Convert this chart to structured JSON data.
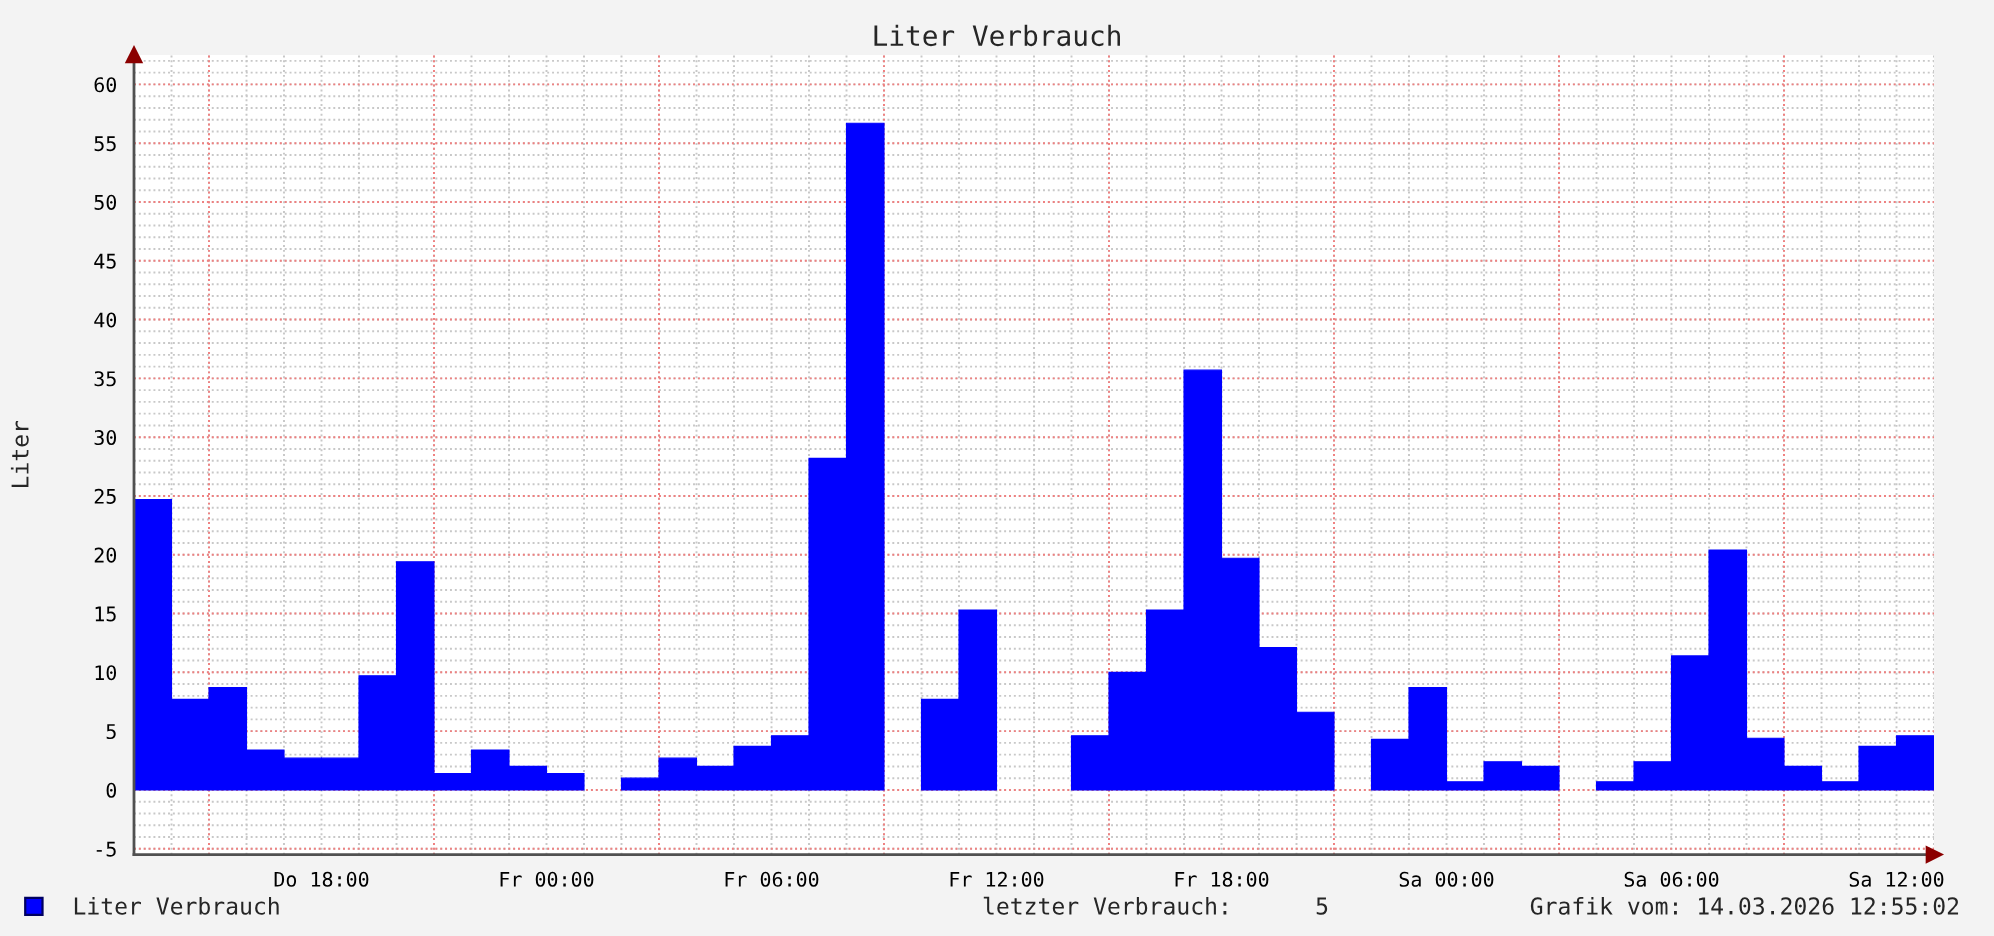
{
  "chart_data": {
    "type": "bar",
    "title": "Liter Verbrauch",
    "ylabel": "Liter",
    "x": [
      "2026-03-12T13:30",
      "2026-03-12T14:30",
      "2026-03-12T15:30",
      "2026-03-12T16:30",
      "2026-03-12T17:30",
      "2026-03-12T18:30",
      "2026-03-12T19:30",
      "2026-03-12T20:30",
      "2026-03-12T21:30",
      "2026-03-12T22:30",
      "2026-03-12T23:30",
      "2026-03-13T00:30",
      "2026-03-13T01:30",
      "2026-03-13T02:30",
      "2026-03-13T03:30",
      "2026-03-13T04:30",
      "2026-03-13T05:30",
      "2026-03-13T06:30",
      "2026-03-13T07:30",
      "2026-03-13T08:30",
      "2026-03-13T09:30",
      "2026-03-13T10:30",
      "2026-03-13T11:30",
      "2026-03-13T12:30",
      "2026-03-13T13:30",
      "2026-03-13T14:30",
      "2026-03-13T15:30",
      "2026-03-13T16:30",
      "2026-03-13T17:30",
      "2026-03-13T18:30",
      "2026-03-13T19:30",
      "2026-03-13T20:30",
      "2026-03-13T21:30",
      "2026-03-13T22:30",
      "2026-03-13T23:30",
      "2026-03-14T00:30",
      "2026-03-14T01:30",
      "2026-03-14T02:30",
      "2026-03-14T03:30",
      "2026-03-14T04:30",
      "2026-03-14T05:30",
      "2026-03-14T06:30",
      "2026-03-14T07:30",
      "2026-03-14T08:30",
      "2026-03-14T09:30",
      "2026-03-14T10:30",
      "2026-03-14T11:30",
      "2026-03-14T12:30"
    ],
    "series": [
      {
        "name": "Liter Verbrauch",
        "color": "#0000ff",
        "values": [
          24.7,
          7.7,
          8.7,
          3.4,
          2.7,
          2.7,
          9.7,
          19.4,
          1.4,
          3.4,
          2.0,
          1.4,
          null,
          1.0,
          2.7,
          2.0,
          3.7,
          4.6,
          28.2,
          56.7,
          null,
          7.7,
          15.3,
          null,
          null,
          4.6,
          10.0,
          15.3,
          35.7,
          19.7,
          12.1,
          6.6,
          null,
          4.3,
          8.7,
          0.7,
          2.4,
          2.0,
          null,
          0.7,
          2.4,
          11.4,
          20.4,
          4.4,
          2.0,
          0.7,
          3.7,
          4.6
        ]
      }
    ],
    "xlim": [
      "2026-03-12T13:00",
      "2026-03-14T13:00"
    ],
    "xticks": [
      {
        "value": "2026-03-12T15:00",
        "label": null
      },
      {
        "value": "2026-03-12T18:00",
        "label": "Do 18:00"
      },
      {
        "value": "2026-03-12T21:00",
        "label": null
      },
      {
        "value": "2026-03-13T00:00",
        "label": "Fr 00:00"
      },
      {
        "value": "2026-03-13T03:00",
        "label": null
      },
      {
        "value": "2026-03-13T06:00",
        "label": "Fr 06:00"
      },
      {
        "value": "2026-03-13T09:00",
        "label": null
      },
      {
        "value": "2026-03-13T12:00",
        "label": "Fr 12:00"
      },
      {
        "value": "2026-03-13T15:00",
        "label": null
      },
      {
        "value": "2026-03-13T18:00",
        "label": "Fr 18:00"
      },
      {
        "value": "2026-03-13T21:00",
        "label": null
      },
      {
        "value": "2026-03-14T00:00",
        "label": "Sa 00:00"
      },
      {
        "value": "2026-03-14T03:00",
        "label": null
      },
      {
        "value": "2026-03-14T06:00",
        "label": "Sa 06:00"
      },
      {
        "value": "2026-03-14T09:00",
        "label": null
      },
      {
        "value": "2026-03-14T12:00",
        "label": "Sa 12:00"
      }
    ],
    "ylim": [
      -5.5,
      62.5
    ],
    "yticks": [
      -5,
      0,
      5,
      10,
      15,
      20,
      25,
      30,
      35,
      40,
      45,
      50,
      55,
      60
    ],
    "grid": true,
    "legend": "bottom left",
    "annotations": [
      "letzter Verbrauch:      5",
      "Grafik vom: 14.03.2026 12:55:02"
    ]
  }
}
